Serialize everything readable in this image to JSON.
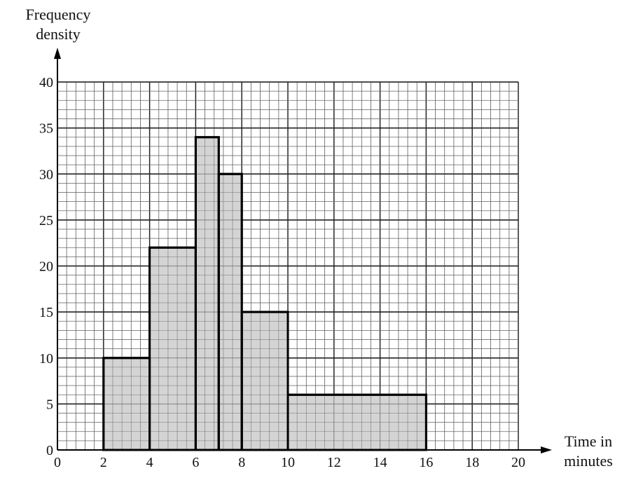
{
  "chart_data": {
    "type": "bar",
    "subtype": "histogram",
    "ylabel_lines": [
      "Frequency",
      "density"
    ],
    "xlabel_lines": [
      "Time in",
      "minutes"
    ],
    "xlim": [
      0,
      20
    ],
    "ylim": [
      0,
      40
    ],
    "x_ticks": [
      0,
      2,
      4,
      6,
      8,
      10,
      12,
      14,
      16,
      18,
      20
    ],
    "y_ticks": [
      0,
      5,
      10,
      15,
      20,
      25,
      30,
      35,
      40
    ],
    "grid": true,
    "bins": [
      {
        "from": 2,
        "to": 4,
        "value": 10
      },
      {
        "from": 4,
        "to": 6,
        "value": 22
      },
      {
        "from": 6,
        "to": 7,
        "value": 34
      },
      {
        "from": 7,
        "to": 8,
        "value": 30
      },
      {
        "from": 8,
        "to": 10,
        "value": 15
      },
      {
        "from": 10,
        "to": 16,
        "value": 6
      }
    ],
    "colors": {
      "bar_fill": "#cccccc",
      "bar_stroke": "#000000",
      "grid": "#000000"
    }
  }
}
